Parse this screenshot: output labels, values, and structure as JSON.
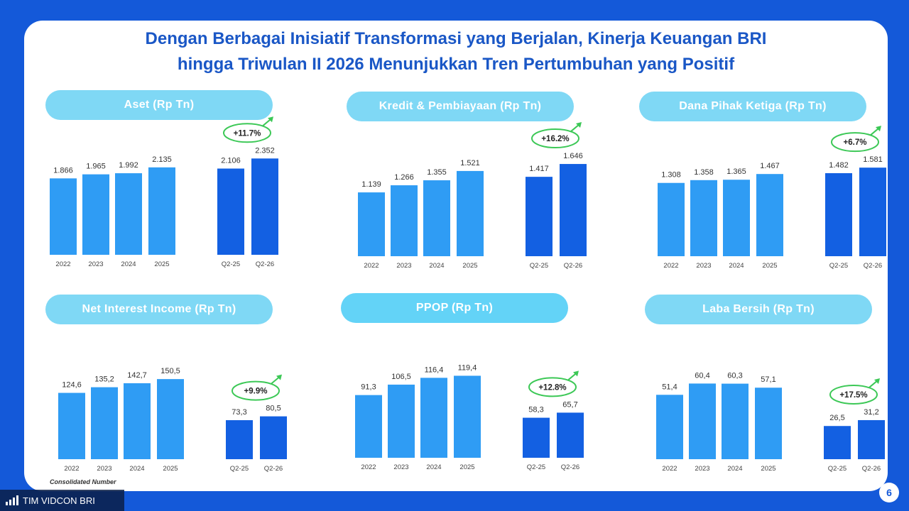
{
  "title_line1": "Dengan Berbagai Inisiatif Transformasi yang Berjalan, Kinerja Keuangan BRI",
  "title_line2": "hingga Triwulan II 2026 Menunjukkan Tren Pertumbuhan yang Positif",
  "footnote": "Consolidated Number",
  "page_number": "6",
  "watermark": "TIM VIDCON BRI",
  "colors": {
    "annual_bar": "#2f9cf4",
    "quarter_bar": "#1360e2",
    "growth_ring": "#3cc856",
    "pill": "#7fd8f5"
  },
  "chart_data": [
    {
      "type": "bar",
      "title": "Aset (Rp Tn)",
      "categories": [
        "2022",
        "2023",
        "2024",
        "2025",
        "Q2-25",
        "Q2-26"
      ],
      "values": [
        1866,
        1965,
        1992,
        2135,
        2106,
        2352
      ],
      "labels": [
        "1.866",
        "1.965",
        "1.992",
        "2.135",
        "2.106",
        "2.352"
      ],
      "growth": "+11.7%",
      "ylim": [
        0,
        2600
      ]
    },
    {
      "type": "bar",
      "title": "Kredit & Pembiayaan (Rp Tn)",
      "categories": [
        "2022",
        "2023",
        "2024",
        "2025",
        "Q2-25",
        "Q2-26"
      ],
      "values": [
        1139,
        1266,
        1355,
        1521,
        1417,
        1646
      ],
      "labels": [
        "1.139",
        "1.266",
        "1.355",
        "1.521",
        "1.417",
        "1.646"
      ],
      "growth": "+16.2%",
      "ylim": [
        0,
        1900
      ]
    },
    {
      "type": "bar",
      "title": "Dana Pihak Ketiga (Rp Tn)",
      "categories": [
        "2022",
        "2023",
        "2024",
        "2025",
        "Q2-25",
        "Q2-26"
      ],
      "values": [
        1308,
        1358,
        1365,
        1467,
        1482,
        1581
      ],
      "labels": [
        "1.308",
        "1.358",
        "1.365",
        "1.467",
        "1.482",
        "1.581"
      ],
      "growth": "+6.7%",
      "ylim": [
        0,
        1900
      ]
    },
    {
      "type": "bar",
      "title": "Net Interest Income (Rp Tn)",
      "categories": [
        "2022",
        "2023",
        "2024",
        "2025",
        "Q2-25",
        "Q2-26"
      ],
      "values": [
        124.6,
        135.2,
        142.7,
        150.5,
        73.3,
        80.5
      ],
      "labels": [
        "124,6",
        "135,2",
        "142,7",
        "150,5",
        "73,3",
        "80,5"
      ],
      "growth": "+9.9%",
      "ylim": [
        0,
        200
      ]
    },
    {
      "type": "bar",
      "title": "PPOP (Rp Tn)",
      "categories": [
        "2022",
        "2023",
        "2024",
        "2025",
        "Q2-25",
        "Q2-26"
      ],
      "values": [
        91.3,
        106.5,
        116.4,
        119.4,
        58.3,
        65.7
      ],
      "labels": [
        "91,3",
        "106,5",
        "116,4",
        "119,4",
        "58,3",
        "65,7"
      ],
      "growth": "+12.8%",
      "ylim": [
        0,
        155
      ]
    },
    {
      "type": "bar",
      "title": "Laba Bersih (Rp Tn)",
      "categories": [
        "2022",
        "2023",
        "2024",
        "2025",
        "Q2-25",
        "Q2-26"
      ],
      "values": [
        51.4,
        60.4,
        60.3,
        57.1,
        26.5,
        31.2
      ],
      "labels": [
        "51,4",
        "60,4",
        "60,3",
        "57,1",
        "26,5",
        "31,2"
      ],
      "growth": "+17.5%",
      "ylim": [
        0,
        85
      ]
    }
  ]
}
